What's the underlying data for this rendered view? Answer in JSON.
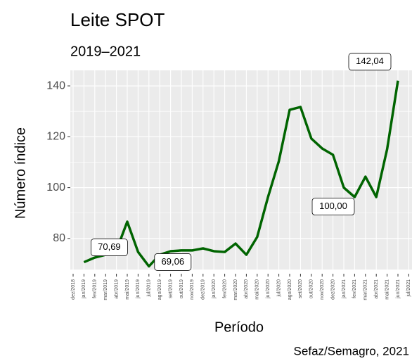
{
  "chart_data": {
    "type": "line",
    "title": "Leite SPOT",
    "subtitle": "2019–2021",
    "x_label": "Período",
    "y_label": "Número índice",
    "caption": "Sefaz/Semagro, 2021",
    "categories": [
      "dez/2018",
      "jan/2019",
      "fev/2019",
      "mar/2019",
      "abr/2019",
      "mai/2019",
      "jun/2019",
      "jul/2019",
      "ago/2019",
      "set/2019",
      "out/2019",
      "nov/2019",
      "dez/2019",
      "jan/2020",
      "fev/2020",
      "mar/2020",
      "abr/2020",
      "mai/2020",
      "jun/2020",
      "jul/2020",
      "ago/2020",
      "set/2020",
      "out/2020",
      "nov/2020",
      "dez/2020",
      "jan/2021",
      "fev/2021",
      "mar/2021",
      "abr/2021",
      "mai/2021",
      "jun/2021",
      "jul/2021"
    ],
    "values": [
      null,
      70.69,
      72.5,
      73.6,
      75.3,
      86.6,
      74.7,
      69.06,
      73.6,
      75.0,
      75.3,
      75.3,
      76.1,
      75.0,
      74.7,
      78.0,
      73.6,
      80.6,
      96.3,
      110.4,
      130.6,
      131.7,
      119.3,
      115.4,
      112.9,
      100.0,
      96.3,
      104.3,
      96.3,
      115.1,
      142.04,
      null
    ],
    "value_labels": [
      null,
      "70,69",
      null,
      null,
      null,
      null,
      null,
      "69,06",
      null,
      null,
      null,
      null,
      null,
      null,
      null,
      null,
      null,
      null,
      null,
      null,
      null,
      null,
      null,
      null,
      null,
      "100,00",
      null,
      null,
      null,
      null,
      "142,04",
      null
    ],
    "color": "#006400",
    "ylim": [
      67.8,
      146.1
    ],
    "yticks": [
      80,
      100,
      120,
      140
    ],
    "grid": true
  }
}
